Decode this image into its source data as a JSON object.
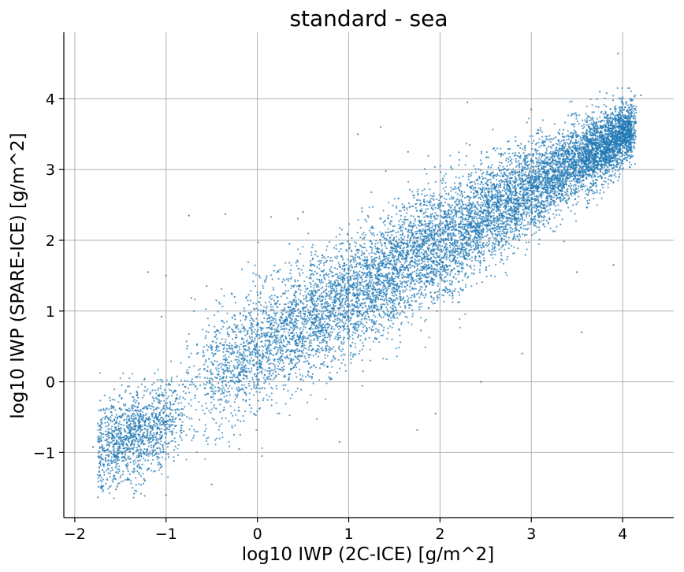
{
  "chart_data": {
    "type": "scatter",
    "title": "standard - sea",
    "xlabel": "log10 IWP (2C-ICE) [g/m^2]",
    "ylabel": "log10 IWP (SPARE-ICE) [g/m^2]",
    "xlim": [
      -2.12,
      4.56
    ],
    "ylim": [
      -1.92,
      4.94
    ],
    "xticks": [
      -2,
      -1,
      0,
      1,
      2,
      3,
      4
    ],
    "yticks": [
      -1,
      0,
      1,
      2,
      3,
      4
    ],
    "grid": true,
    "marker_color": "#1f77b4",
    "series": [
      {
        "relationship": "dense positive linear trend along y ≈ 0.75x + 0.45",
        "x_range": [
          -1.8,
          4.25
        ],
        "y_range": [
          -1.6,
          4.64
        ],
        "points": [
          [
            -1.8,
            -0.92
          ],
          [
            -1.72,
            -0.72
          ],
          [
            -1.55,
            -1.52
          ],
          [
            -1.5,
            -0.8
          ],
          [
            -1.43,
            -1.2
          ],
          [
            -1.35,
            -1.58
          ],
          [
            -1.3,
            -0.3
          ],
          [
            -1.2,
            1.55
          ],
          [
            -1.05,
            0.92
          ],
          [
            -1.0,
            1.5
          ],
          [
            -1.0,
            -1.6
          ],
          [
            -0.75,
            2.35
          ],
          [
            -0.75,
            0.35
          ],
          [
            -0.45,
            1.15
          ],
          [
            -0.35,
            2.37
          ],
          [
            -0.25,
            1.2
          ],
          [
            -0.5,
            -1.45
          ],
          [
            -0.2,
            -0.95
          ],
          [
            0.02,
            1.5
          ],
          [
            0.05,
            -1.05
          ],
          [
            0.35,
            1.95
          ],
          [
            0.5,
            2.4
          ],
          [
            0.9,
            -0.85
          ],
          [
            1.35,
            3.6
          ],
          [
            1.1,
            3.5
          ],
          [
            1.65,
            3.25
          ],
          [
            1.75,
            -0.68
          ],
          [
            1.95,
            -0.45
          ],
          [
            2.3,
            3.95
          ],
          [
            2.45,
            0.0
          ],
          [
            2.9,
            0.4
          ],
          [
            3.0,
            3.85
          ],
          [
            3.5,
            1.55
          ],
          [
            3.55,
            0.7
          ],
          [
            3.9,
            1.65
          ],
          [
            3.95,
            4.64
          ],
          [
            3.75,
            4.1
          ],
          [
            4.0,
            4.02
          ],
          [
            4.1,
            3.98
          ],
          [
            4.2,
            4.05
          ]
        ]
      }
    ]
  }
}
